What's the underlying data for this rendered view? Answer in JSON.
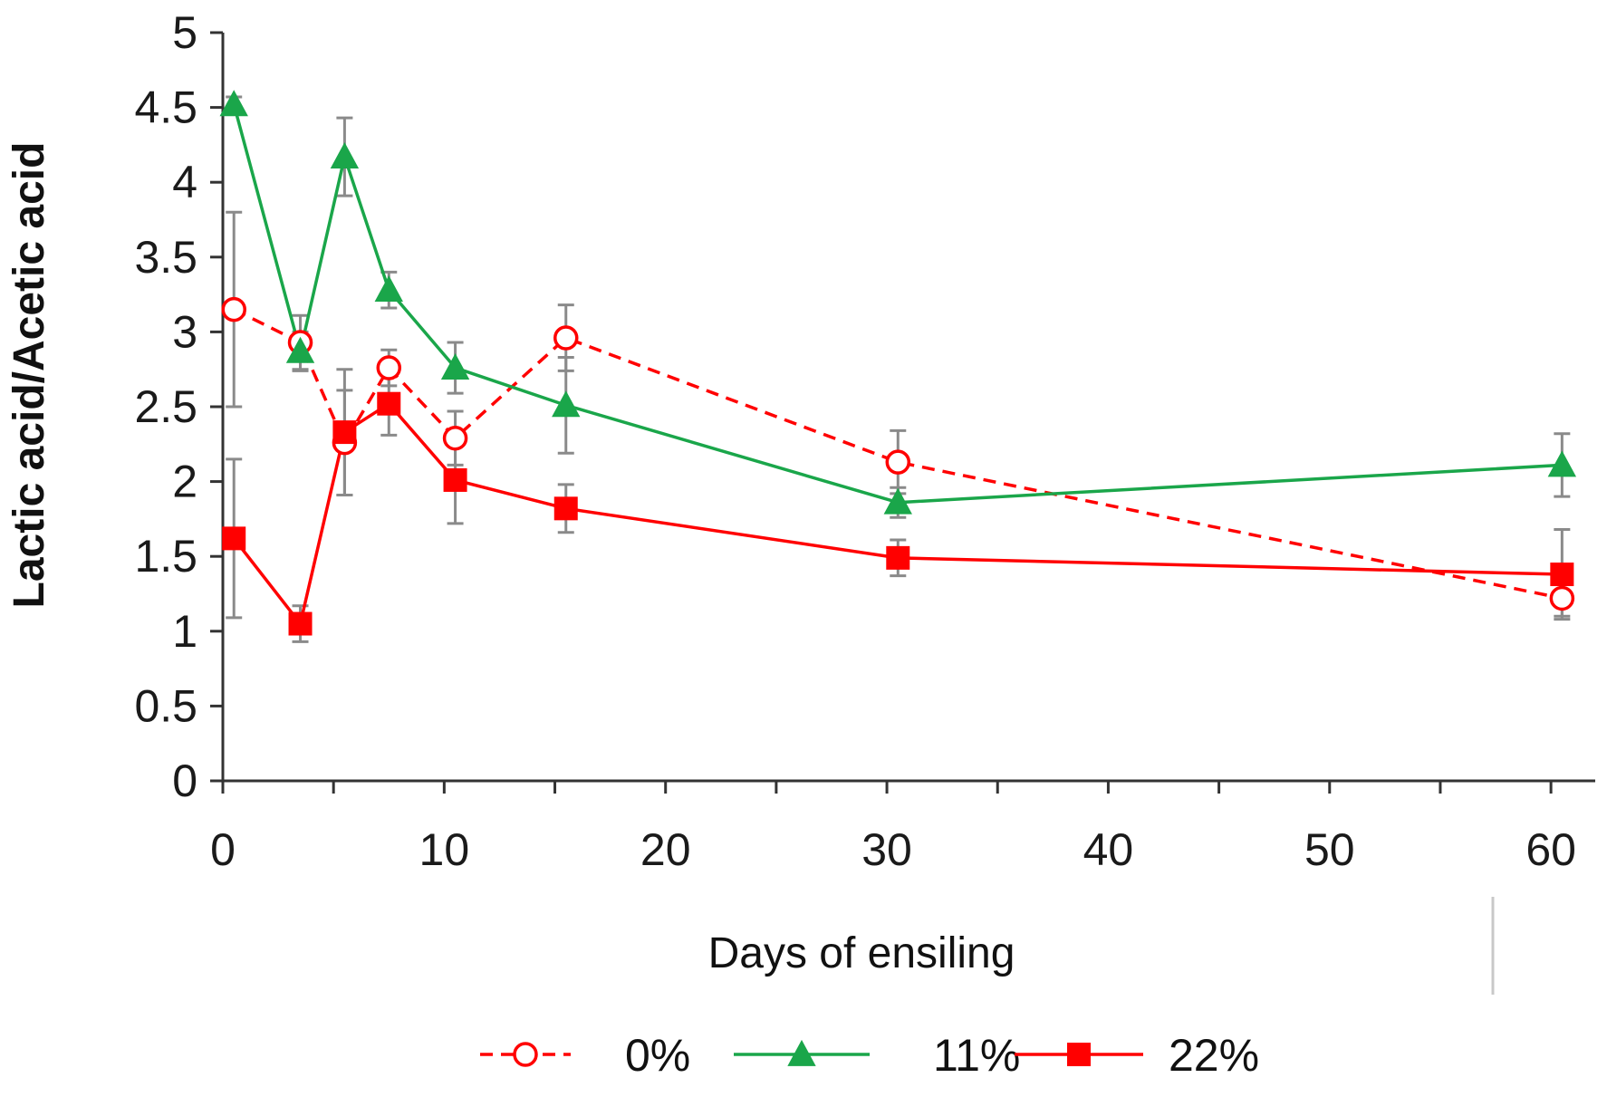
{
  "chart_data": {
    "type": "line",
    "title": "",
    "xlabel": "Days of ensiling",
    "ylabel": "Lactic acid/Acetic acid",
    "xlim": [
      0,
      62
    ],
    "ylim": [
      0,
      5
    ],
    "x_ticks": [
      0,
      10,
      20,
      30,
      40,
      50,
      60
    ],
    "x_minor_ticks": [
      5,
      15,
      25,
      35,
      45,
      55
    ],
    "y_ticks": [
      0,
      0.5,
      1,
      1.5,
      2,
      2.5,
      3,
      3.5,
      4,
      4.5,
      5
    ],
    "y_tick_labels": [
      "0",
      "0.5",
      "1",
      "1.5",
      "2",
      "2.5",
      "3",
      "3.5",
      "4",
      "4.5",
      "5"
    ],
    "x_tick_labels": [
      "0",
      "10",
      "20",
      "30",
      "40",
      "50",
      "60"
    ],
    "legend_position": "bottom",
    "series": [
      {
        "name": "0%",
        "color": "#ff0000",
        "line_style": "dashed",
        "marker": "open-circle",
        "x": [
          0.5,
          3.5,
          5.5,
          7.5,
          10.5,
          15.5,
          30.5,
          60.5
        ],
        "values": [
          3.15,
          2.93,
          2.26,
          2.76,
          2.29,
          2.96,
          2.13,
          1.22
        ],
        "errors": [
          0.65,
          0.18,
          0.35,
          0.12,
          0.18,
          0.22,
          0.21,
          0.12
        ]
      },
      {
        "name": "11%",
        "color": "#1aa64a",
        "line_style": "solid",
        "marker": "filled-triangle",
        "x": [
          0.5,
          3.5,
          5.5,
          7.5,
          10.5,
          15.5,
          30.5,
          60.5
        ],
        "values": [
          4.52,
          2.87,
          4.17,
          3.28,
          2.76,
          2.51,
          1.86,
          2.11
        ],
        "errors": [
          0.05,
          0.13,
          0.26,
          0.12,
          0.17,
          0.32,
          0.1,
          0.21
        ]
      },
      {
        "name": "22%",
        "color": "#ff0000",
        "line_style": "solid",
        "marker": "filled-square",
        "x": [
          0.5,
          3.5,
          5.5,
          7.5,
          10.5,
          15.5,
          30.5,
          60.5
        ],
        "values": [
          1.62,
          1.05,
          2.33,
          2.52,
          2.01,
          1.82,
          1.49,
          1.38
        ],
        "errors": [
          0.53,
          0.12,
          0.42,
          0.21,
          0.29,
          0.16,
          0.12,
          0.3
        ]
      }
    ]
  }
}
